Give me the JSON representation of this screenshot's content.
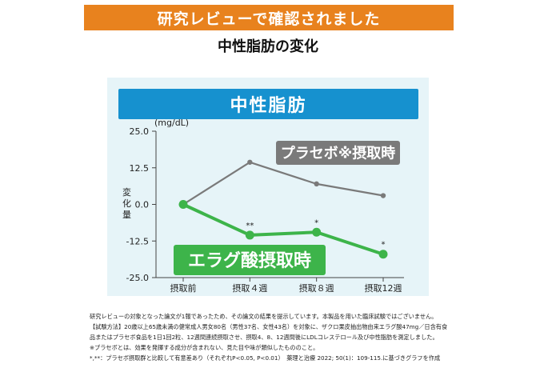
{
  "header": {
    "banner": "研究レビューで確認されました",
    "subtitle": "中性脂肪の変化"
  },
  "chart_data": {
    "type": "line",
    "title": "中性脂肪",
    "unit": "(mg/dL)",
    "ylabel": "変化量",
    "ylim": [
      -25.0,
      25.0
    ],
    "yticks": [
      "25.0",
      "12.5",
      "0.0",
      "-12.5",
      "-25.0"
    ],
    "ytick_values": [
      25.0,
      12.5,
      0.0,
      -12.5,
      -25.0
    ],
    "categories": [
      "摂取前",
      "摂取４週",
      "摂取８週",
      "摂取12週"
    ],
    "grid": false,
    "series": [
      {
        "name": "プラセボ※摂取時",
        "color": "#7a7a7a",
        "label_bg": "#7a7a7a",
        "values": [
          0.0,
          14.4,
          7.0,
          3.0
        ],
        "markers": [
          "",
          "",
          "",
          ""
        ]
      },
      {
        "name": "エラグ酸摂取時",
        "color": "#3db44a",
        "label_bg": "#3db44a",
        "values": [
          0.0,
          -10.5,
          -9.5,
          -17.0
        ],
        "markers": [
          "",
          "**",
          "*",
          "*"
        ]
      }
    ]
  },
  "footnotes": [
    "研究レビューの対象となった論文が1報であったため、その論文の結果を提示しています。本製品を用いた臨床試験ではございません。",
    "【試験方法】20歳以上65歳未満の健常成人男女80名（男性37名、女性43名）を対象に、ザクロ果皮抽出物由来エラグ酸47mg／日含有食",
    "品またはプラセボ食品を1日1回2粒、12週間連続摂取させ、摂取4、8、12週間後にLDLコレステロール及び中性脂肪を測定しました。",
    "※プラセボとは、効果を発揮する成分が含まれない、見た目や味が類似したもののこと。",
    "*,**：プラセボ摂取群と比較して有意差あり（それぞれP<0.05, P<0.01）　薬理と治療 2022; 50(1)：109-115.に基づきグラフを作成"
  ]
}
